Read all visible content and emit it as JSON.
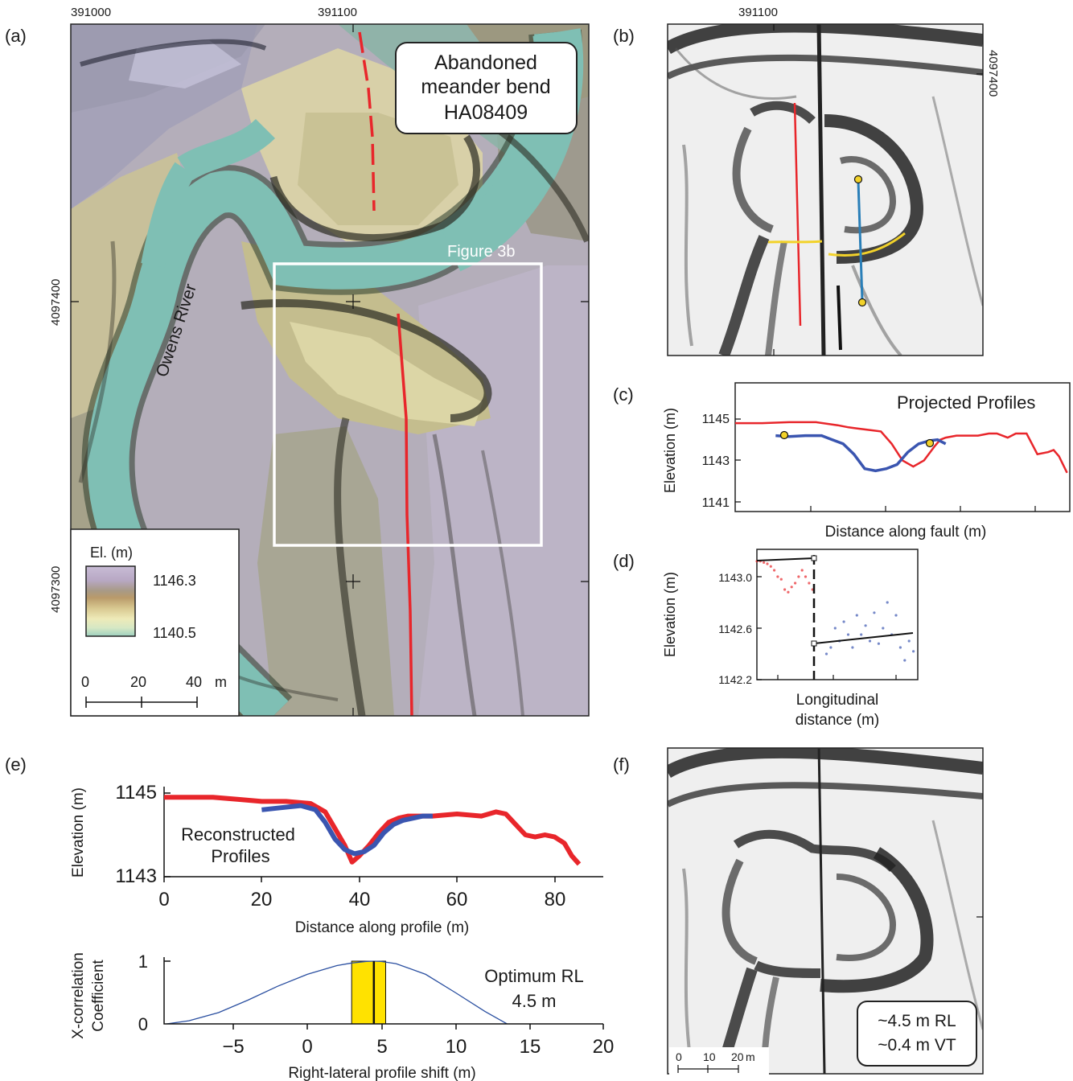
{
  "panel_a": {
    "label": "(a)",
    "x_ticks": [
      "391000",
      "391100"
    ],
    "y_ticks": [
      "4097400",
      "4097300"
    ],
    "callout_lines": [
      "Abandoned",
      "meander bend",
      "HA08409"
    ],
    "river_label": "Owens River",
    "inset_label": "Figure 3b",
    "legend": {
      "title": "El. (m)",
      "max": "1146.3",
      "min": "1140.5",
      "colors": [
        "#c8bcd6",
        "#b8a8c4",
        "#a89a86",
        "#b99a6a",
        "#d8c890",
        "#eeeab8",
        "#c6e0c0",
        "#9ed0c0"
      ]
    },
    "scale_bar": {
      "labels": [
        "0",
        "20",
        "40"
      ],
      "unit": "m"
    }
  },
  "panel_b": {
    "label": "(b)",
    "x_tick": "391100",
    "y_tick": "4097400"
  },
  "panel_c": {
    "label": "(c)",
    "title": "Projected Profiles",
    "ylabel": "Elevation (m)",
    "xlabel": "Distance along fault (m)",
    "yticks": [
      "1145",
      "1143",
      "1141"
    ]
  },
  "panel_d": {
    "label": "(d)",
    "ylabel": "Elevation (m)",
    "xlabel_lines": [
      "Longitudinal",
      "distance (m)"
    ],
    "yticks": [
      "1143.0",
      "1142.6",
      "1142.2"
    ]
  },
  "panel_e": {
    "label": "(e)",
    "annotation_lines": [
      "Reconstructed",
      "Profiles"
    ],
    "ylabel": "Elevation (m)",
    "xlabel": "Distance along profile (m)",
    "yticks": [
      "1145",
      "1143"
    ],
    "xticks": [
      "0",
      "20",
      "40",
      "60",
      "80"
    ],
    "corr_ylabel_lines": [
      "X-correlation",
      "Coefficient"
    ],
    "corr_xlabel": "Right-lateral profile shift (m)",
    "corr_yticks": [
      "1",
      "0"
    ],
    "corr_xticks": [
      "−5",
      "0",
      "5",
      "10",
      "15",
      "20"
    ],
    "optimum_lines": [
      "Optimum RL",
      "4.5 m"
    ]
  },
  "panel_f": {
    "label": "(f)",
    "result_lines": [
      "~4.5 m RL",
      "~0.4 m VT"
    ],
    "scale_labels": [
      "0",
      "10",
      "20"
    ],
    "scale_unit": "m"
  },
  "colors": {
    "fault_red": "#e8262b",
    "profile_blue": "#3a55b0",
    "marker_yellow": "#f2d22a",
    "band_yellow": "#ffe200",
    "river_teal": "#7fbfb4"
  },
  "chart_data": [
    {
      "panel": "c",
      "type": "line",
      "title": "Projected Profiles",
      "xlabel": "Distance along fault (m)",
      "ylabel": "Elevation (m)",
      "ylim": [
        1140.2,
        1146.8
      ],
      "series": [
        {
          "x": [
            0,
            10,
            20,
            30,
            38,
            42,
            45,
            48,
            51,
            54,
            58,
            62,
            66,
            70,
            74,
            76,
            78,
            82,
            86,
            90,
            94,
            97,
            101,
            104,
            108,
            112,
            116,
            118,
            120,
            123
          ],
          "values": [
            1144.8,
            1144.8,
            1144.85,
            1144.85,
            1144.7,
            1144.6,
            1144.55,
            1144.5,
            1144.45,
            1144.4,
            1143.8,
            1143.0,
            1142.7,
            1143.0,
            1143.7,
            1144.0,
            1144.1,
            1144.2,
            1144.2,
            1144.2,
            1144.3,
            1144.3,
            1144.1,
            1144.3,
            1144.3,
            1143.3,
            1143.4,
            1143.5,
            1143.2,
            1142.4
          ]
        },
        {
          "x": [
            15,
            20,
            26,
            32,
            36,
            40,
            44,
            48,
            52,
            56,
            60,
            64,
            68,
            72,
            75,
            78
          ],
          "values": [
            1144.2,
            1144.15,
            1144.2,
            1144.2,
            1144.0,
            1143.8,
            1143.3,
            1142.6,
            1142.5,
            1142.6,
            1142.8,
            1143.4,
            1143.8,
            1143.95,
            1144.0,
            1143.8
          ]
        }
      ]
    },
    {
      "panel": "d",
      "type": "scatter",
      "xlabel": "Longitudinal distance (m)",
      "ylabel": "Elevation (m)",
      "ylim": [
        1142.2,
        1143.2
      ],
      "series": [
        {
          "x": [
            0,
            4,
            8,
            12,
            16,
            20,
            24,
            28,
            32,
            36,
            40,
            44,
            48,
            52,
            56,
            60,
            64
          ],
          "values": [
            1143.12,
            1143.12,
            1143.11,
            1143.1,
            1143.08,
            1143.05,
            1143.0,
            1142.98,
            1142.9,
            1142.88,
            1142.92,
            1142.95,
            1143.0,
            1143.05,
            1143.0,
            1142.95,
            1142.9
          ]
        },
        {
          "x": [
            80,
            85,
            90,
            95,
            100,
            105,
            110,
            115,
            120,
            125,
            130,
            135,
            140,
            145,
            150,
            155,
            160,
            165,
            170,
            175,
            180
          ],
          "values": [
            1142.4,
            1142.45,
            1142.6,
            1142.5,
            1142.65,
            1142.55,
            1142.45,
            1142.7,
            1142.55,
            1142.62,
            1142.5,
            1142.72,
            1142.48,
            1142.6,
            1142.8,
            1142.55,
            1142.7,
            1142.45,
            1142.35,
            1142.5,
            1142.42
          ]
        }
      ]
    },
    {
      "panel": "e-profiles",
      "type": "line",
      "xlabel": "Distance along profile (m)",
      "ylabel": "Elevation (m)",
      "xlim": [
        0,
        90
      ],
      "ylim": [
        1143,
        1145
      ],
      "series": [
        {
          "x": [
            0,
            5,
            10,
            15,
            20,
            25,
            30,
            33,
            35,
            37,
            38.5,
            40,
            42,
            44,
            46,
            48,
            50,
            55,
            60,
            65,
            68,
            70,
            72,
            74,
            76,
            78,
            80,
            82,
            83.5,
            85
          ],
          "values": [
            1144.9,
            1144.9,
            1144.9,
            1144.85,
            1144.8,
            1144.8,
            1144.75,
            1144.55,
            1144.15,
            1143.75,
            1143.35,
            1143.5,
            1143.75,
            1144.05,
            1144.3,
            1144.4,
            1144.45,
            1144.45,
            1144.5,
            1144.45,
            1144.55,
            1144.5,
            1144.25,
            1144.0,
            1143.95,
            1144.0,
            1143.95,
            1143.8,
            1143.5,
            1143.3
          ]
        },
        {
          "x": [
            20,
            24,
            28,
            31,
            33,
            35,
            37,
            39,
            41,
            43,
            45,
            47,
            49,
            51,
            53,
            55
          ],
          "values": [
            1144.6,
            1144.65,
            1144.7,
            1144.6,
            1144.3,
            1143.9,
            1143.65,
            1143.55,
            1143.6,
            1143.75,
            1144.05,
            1144.25,
            1144.35,
            1144.4,
            1144.45,
            1144.45
          ]
        }
      ]
    },
    {
      "panel": "e-correlation",
      "type": "line",
      "xlabel": "Right-lateral profile shift (m)",
      "ylabel": "X-correlation Coefficient",
      "xlim": [
        -9.5,
        20
      ],
      "ylim": [
        0,
        1
      ],
      "optimum": 4.5,
      "band": [
        3.0,
        5.3
      ],
      "series": [
        {
          "x": [
            -9.5,
            -8,
            -6,
            -4,
            -2,
            0,
            2,
            3,
            4,
            4.5,
            5,
            6,
            8,
            10,
            12,
            13.5
          ],
          "values": [
            0.0,
            0.05,
            0.18,
            0.38,
            0.6,
            0.79,
            0.93,
            0.97,
            0.995,
            1.0,
            0.995,
            0.96,
            0.79,
            0.5,
            0.2,
            0.0
          ]
        }
      ]
    }
  ]
}
